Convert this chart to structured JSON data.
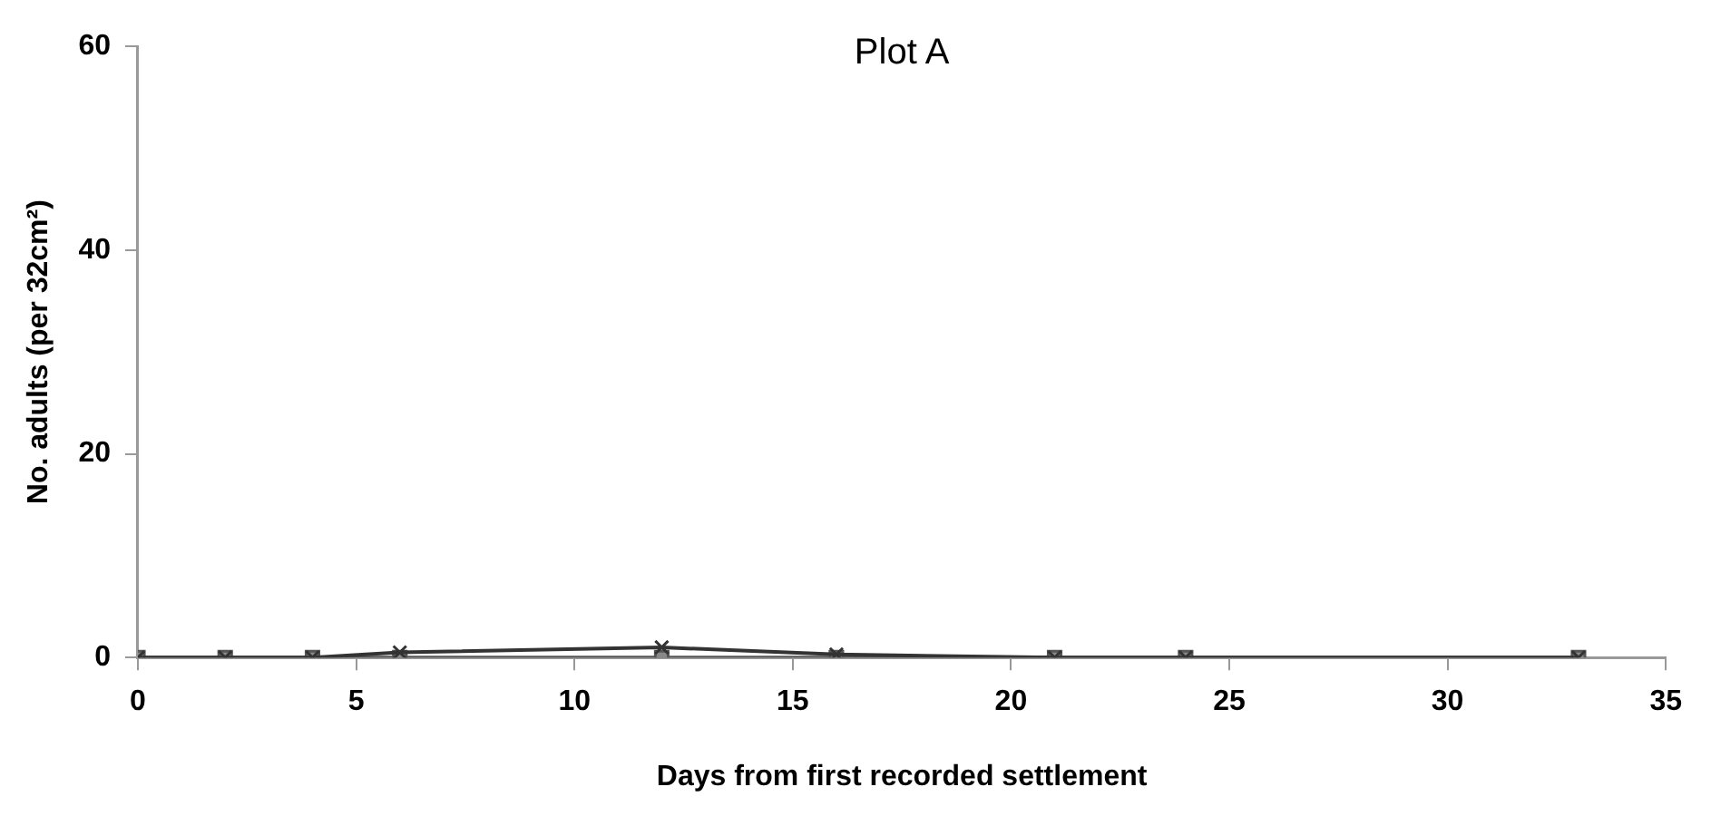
{
  "chart_data": {
    "type": "line",
    "title": "Plot A",
    "xlabel": "Days from first recorded settlement",
    "ylabel": "No. adults (per 32cm²)",
    "x": [
      0,
      2,
      4,
      6,
      12,
      16,
      21,
      24,
      33
    ],
    "series": [
      {
        "color": "#333333",
        "marker": "cross",
        "values": [
          0,
          0,
          0,
          0.5,
          1,
          0.3,
          0,
          0,
          0
        ]
      },
      {
        "color": "#555555",
        "marker": "square",
        "values": [
          0,
          0,
          0,
          0,
          0,
          0,
          0,
          0,
          0
        ]
      }
    ],
    "xlim": [
      0,
      35
    ],
    "xticks": [
      0,
      5,
      10,
      15,
      20,
      25,
      30,
      35
    ],
    "ylim": [
      0,
      60
    ],
    "yticks": [
      0,
      20,
      40,
      60
    ],
    "grid": false,
    "legend": false
  }
}
